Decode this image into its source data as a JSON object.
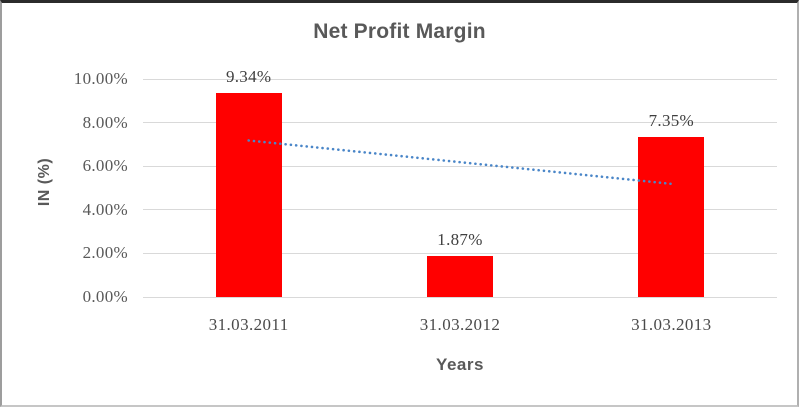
{
  "chart_data": {
    "type": "bar",
    "title": "Net Profit Margin",
    "xlabel": "Years",
    "ylabel": "IN (%)",
    "categories": [
      "31.03.2011",
      "31.03.2012",
      "31.03.2013"
    ],
    "values": [
      9.34,
      1.87,
      7.35
    ],
    "data_labels": [
      "9.34%",
      "1.87%",
      "7.35%"
    ],
    "ylim": [
      0,
      10
    ],
    "ytick_values": [
      0,
      2,
      4,
      6,
      8,
      10
    ],
    "ytick_labels": [
      "0.00%",
      "2.00%",
      "4.00%",
      "6.00%",
      "8.00%",
      "10.00%"
    ],
    "grid": true,
    "legend_position": "none",
    "bar_color": "#ff0000",
    "trendline": {
      "type": "linear",
      "style": "dotted",
      "color": "#4a86c8",
      "start_value": 7.18,
      "end_value": 5.19
    }
  },
  "colors": {
    "title_text": "#595959",
    "tick_text": "#595959",
    "data_label_text": "#3f3f3f",
    "gridline": "#d9d9d9",
    "background": "#ffffff"
  }
}
